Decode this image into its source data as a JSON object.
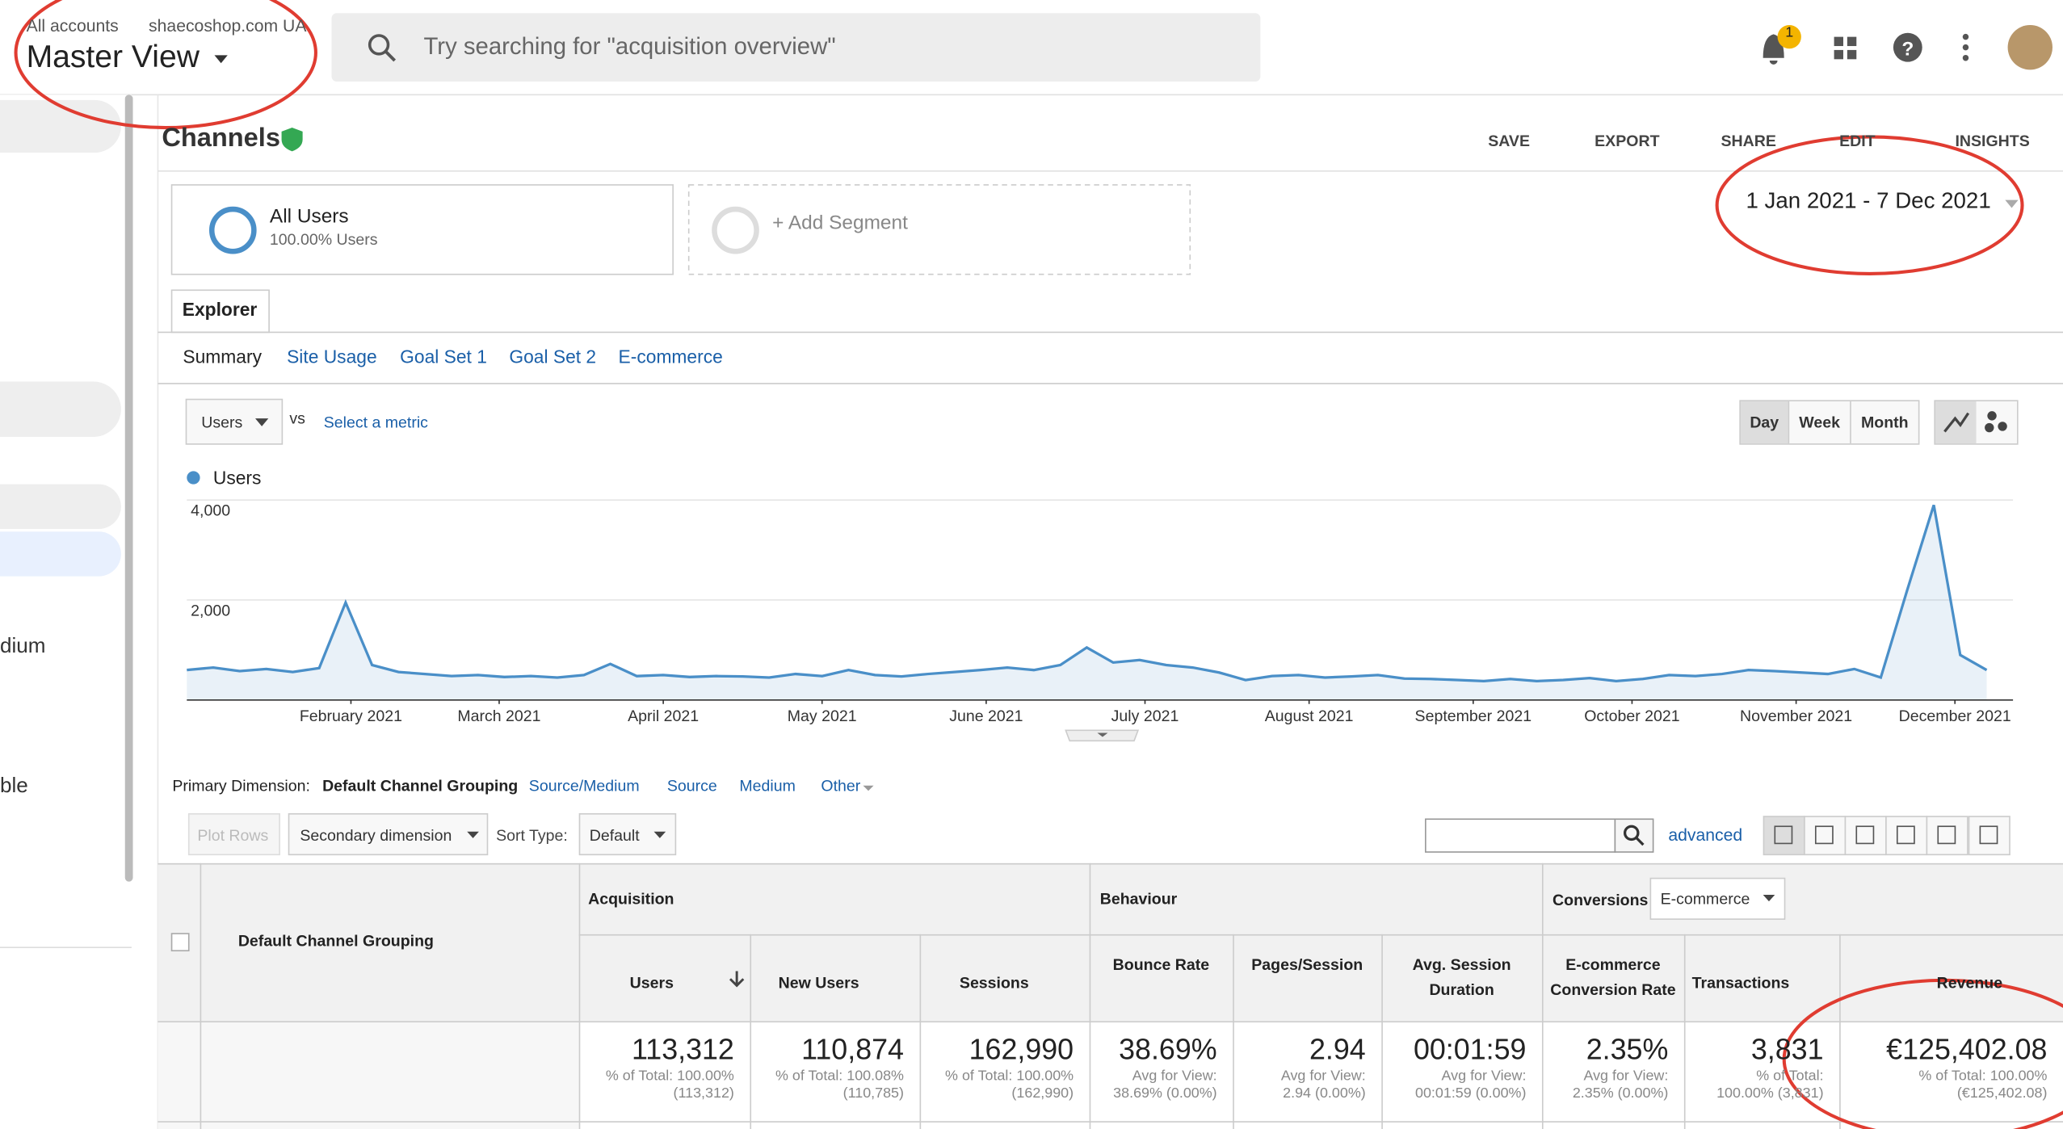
{
  "header": {
    "breadcrumb": [
      "All accounts",
      "shaecoshop.com UA"
    ],
    "view": "Master View",
    "search_placeholder": "Try searching for \"acquisition overview\"",
    "notification_count": "1"
  },
  "sidebar": [
    "dium",
    "ble"
  ],
  "report": {
    "title": "Channels",
    "actions": [
      "SAVE",
      "EXPORT",
      "SHARE",
      "EDIT",
      "INSIGHTS"
    ],
    "date_range": "1 Jan 2021 - 7 Dec 2021"
  },
  "segments": [
    {
      "name": "All Users",
      "detail": "100.00% Users"
    },
    {
      "name": "+ Add Segment"
    }
  ],
  "tabs": {
    "main": "Explorer",
    "sub": [
      "Summary",
      "Site Usage",
      "Goal Set 1",
      "Goal Set 2",
      "E-commerce"
    ]
  },
  "controls": {
    "metric": "Users",
    "vs": "vs",
    "select_metric": "Select a metric",
    "granularity": [
      "Day",
      "Week",
      "Month"
    ]
  },
  "chart_data": {
    "type": "line",
    "series": [
      {
        "name": "Users",
        "color": "#4a8fc8",
        "values": [
          600,
          650,
          580,
          620,
          560,
          640,
          1950,
          700,
          560,
          520,
          480,
          500,
          460,
          480,
          450,
          500,
          720,
          480,
          500,
          460,
          480,
          470,
          450,
          520,
          480,
          600,
          500,
          470,
          520,
          560,
          600,
          650,
          600,
          700,
          1050,
          750,
          800,
          700,
          650,
          550,
          400,
          480,
          500,
          450,
          470,
          500,
          430,
          420,
          400,
          380,
          420,
          380,
          400,
          440,
          380,
          420,
          500,
          480,
          520,
          600,
          580,
          550,
          520,
          620,
          450,
          2200,
          3900,
          900,
          600
        ]
      }
    ],
    "x": [
      0,
      5,
      10,
      15,
      20,
      25,
      30,
      35,
      40,
      45,
      50,
      55,
      60,
      65,
      70,
      75,
      80,
      85,
      90,
      95,
      100,
      105,
      110,
      115,
      120,
      125,
      130,
      135,
      140,
      145,
      150,
      155,
      160,
      165,
      170,
      175,
      180,
      185,
      190,
      195,
      200,
      205,
      210,
      215,
      220,
      225,
      230,
      235,
      240,
      245,
      250,
      255,
      260,
      265,
      270,
      275,
      280,
      285,
      290,
      295,
      300,
      305,
      310,
      315,
      320,
      325,
      330,
      335,
      340
    ],
    "xlim": [
      0,
      340
    ],
    "xticks": [
      {
        "value": 31,
        "label": "February 2021"
      },
      {
        "value": 59,
        "label": "March 2021"
      },
      {
        "value": 90,
        "label": "April 2021"
      },
      {
        "value": 120,
        "label": "May 2021"
      },
      {
        "value": 151,
        "label": "June 2021"
      },
      {
        "value": 181,
        "label": "July 2021"
      },
      {
        "value": 212,
        "label": "August 2021"
      },
      {
        "value": 243,
        "label": "September 2021"
      },
      {
        "value": 273,
        "label": "October 2021"
      },
      {
        "value": 304,
        "label": "November 2021"
      },
      {
        "value": 334,
        "label": "December 2021"
      }
    ],
    "ylim": [
      0,
      4000
    ],
    "yticks": [
      {
        "value": 2000,
        "label": "2,000"
      },
      {
        "value": 4000,
        "label": "4,000"
      }
    ],
    "grid": true
  },
  "table": {
    "primary_label": "Primary Dimension:",
    "dimensions": [
      "Default Channel Grouping",
      "Source/Medium",
      "Source",
      "Medium",
      "Other"
    ],
    "toolbar": {
      "plot_rows": "Plot Rows",
      "secondary": "Secondary dimension",
      "sort_label": "Sort Type:",
      "sort": "Default",
      "advanced": "advanced"
    },
    "groups": [
      "Acquisition",
      "Behaviour",
      "Conversions"
    ],
    "conversion_select": "E-commerce",
    "columns": [
      "Default Channel Grouping",
      "Users",
      "New Users",
      "Sessions",
      "Bounce Rate",
      "Pages/Session",
      "Avg. Session Duration",
      "E-commerce Conversion Rate",
      "Transactions",
      "Revenue"
    ],
    "totals": [
      {
        "value": "113,312",
        "sub": [
          "% of Total: 100.00%",
          "(113,312)"
        ]
      },
      {
        "value": "110,874",
        "sub": [
          "% of Total: 100.08%",
          "(110,785)"
        ]
      },
      {
        "value": "162,990",
        "sub": [
          "% of Total: 100.00%",
          "(162,990)"
        ]
      },
      {
        "value": "38.69%",
        "sub": [
          "Avg for View:",
          "38.69% (0.00%)"
        ]
      },
      {
        "value": "2.94",
        "sub": [
          "Avg for View:",
          "2.94 (0.00%)"
        ]
      },
      {
        "value": "00:01:59",
        "sub": [
          "Avg for View:",
          "00:01:59 (0.00%)"
        ]
      },
      {
        "value": "2.35%",
        "sub": [
          "Avg for View:",
          "2.35% (0.00%)"
        ]
      },
      {
        "value": "3,831",
        "sub": [
          "% of Total:",
          "100.00% (3,831)"
        ]
      },
      {
        "value": "€125,402.08",
        "sub": [
          "% of Total: 100.00%",
          "(€125,402.08)"
        ]
      }
    ]
  }
}
